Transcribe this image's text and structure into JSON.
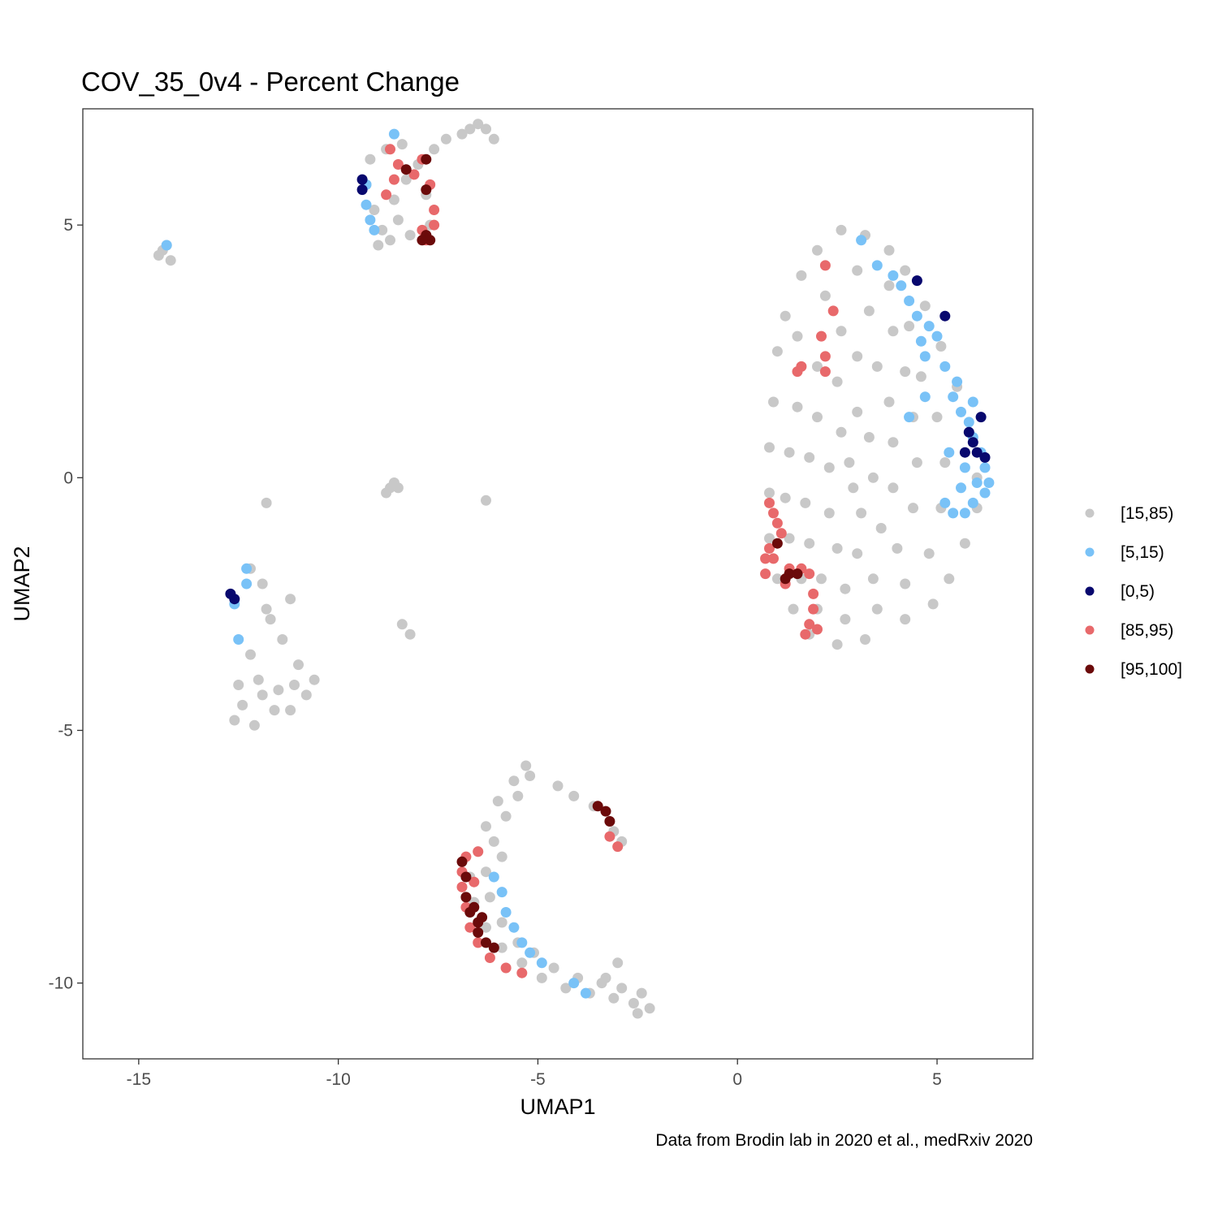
{
  "chart_data": {
    "type": "scatter",
    "title": "COV_35_0v4 - Percent Change",
    "xlabel": "UMAP1",
    "ylabel": "UMAP2",
    "caption": "Data from Brodin lab in 2020 et al., medRxiv 2020",
    "xlim": [
      -16.4,
      7.4
    ],
    "ylim": [
      -11.5,
      7.3
    ],
    "x_ticks": [
      -15,
      -10,
      -5,
      0,
      5
    ],
    "x_tick_labels": [
      "-15",
      "-10",
      "-5",
      "0",
      "5"
    ],
    "y_ticks": [
      -10,
      -5,
      0,
      5
    ],
    "y_tick_labels": [
      "-10",
      "-5",
      "0",
      "5"
    ],
    "grid": false,
    "legend_position": "right",
    "series": [
      {
        "name": "[15,85)",
        "color": "#C8C8C8",
        "points": [
          [
            -14.4,
            4.5
          ],
          [
            -14.2,
            4.3
          ],
          [
            -14.5,
            4.4
          ],
          [
            -14.3,
            4.6
          ],
          [
            -9.2,
            6.3
          ],
          [
            -8.8,
            6.5
          ],
          [
            -8.4,
            6.6
          ],
          [
            -8.0,
            6.2
          ],
          [
            -7.8,
            5.6
          ],
          [
            -7.7,
            5.0
          ],
          [
            -9.3,
            5.8
          ],
          [
            -9.1,
            5.3
          ],
          [
            -8.9,
            4.9
          ],
          [
            -8.6,
            5.5
          ],
          [
            -8.3,
            5.9
          ],
          [
            -8.5,
            5.1
          ],
          [
            -9.0,
            4.6
          ],
          [
            -8.7,
            4.7
          ],
          [
            -8.2,
            4.8
          ],
          [
            -7.6,
            6.5
          ],
          [
            -7.3,
            6.7
          ],
          [
            -6.9,
            6.8
          ],
          [
            -6.5,
            7.0
          ],
          [
            -6.3,
            6.9
          ],
          [
            -6.1,
            6.7
          ],
          [
            -6.7,
            6.9
          ],
          [
            -8.7,
            -0.2
          ],
          [
            -8.8,
            -0.3
          ],
          [
            -8.5,
            -0.2
          ],
          [
            -8.6,
            -0.1
          ],
          [
            -11.8,
            -0.5
          ],
          [
            -6.3,
            -0.45
          ],
          [
            -8.4,
            -2.9
          ],
          [
            -8.2,
            -3.1
          ],
          [
            -12.2,
            -1.8
          ],
          [
            -11.9,
            -2.1
          ],
          [
            -11.8,
            -2.6
          ],
          [
            -12.2,
            -3.5
          ],
          [
            -12.0,
            -4.0
          ],
          [
            -12.4,
            -4.5
          ],
          [
            -12.6,
            -4.8
          ],
          [
            -12.1,
            -4.9
          ],
          [
            -11.6,
            -4.6
          ],
          [
            -11.2,
            -4.6
          ],
          [
            -10.8,
            -4.3
          ],
          [
            -10.6,
            -4.0
          ],
          [
            -11.0,
            -3.7
          ],
          [
            -11.4,
            -3.2
          ],
          [
            -11.2,
            -2.4
          ],
          [
            -11.7,
            -2.8
          ],
          [
            -12.5,
            -4.1
          ],
          [
            -11.9,
            -4.3
          ],
          [
            -11.5,
            -4.2
          ],
          [
            -11.1,
            -4.1
          ],
          [
            1.0,
            2.5
          ],
          [
            1.2,
            3.2
          ],
          [
            1.6,
            4.0
          ],
          [
            2.0,
            4.5
          ],
          [
            2.6,
            4.9
          ],
          [
            3.2,
            4.8
          ],
          [
            3.8,
            4.5
          ],
          [
            4.2,
            4.1
          ],
          [
            4.7,
            3.4
          ],
          [
            5.1,
            2.6
          ],
          [
            5.5,
            1.8
          ],
          [
            5.8,
            0.9
          ],
          [
            6.0,
            0.0
          ],
          [
            6.0,
            -0.6
          ],
          [
            5.7,
            -1.3
          ],
          [
            5.3,
            -2.0
          ],
          [
            4.9,
            -2.5
          ],
          [
            4.2,
            -2.8
          ],
          [
            3.2,
            -3.2
          ],
          [
            2.5,
            -3.3
          ],
          [
            1.8,
            -3.1
          ],
          [
            1.4,
            -2.6
          ],
          [
            1.0,
            -2.0
          ],
          [
            0.8,
            -1.2
          ],
          [
            0.8,
            -0.3
          ],
          [
            0.8,
            0.6
          ],
          [
            0.9,
            1.5
          ],
          [
            1.5,
            2.8
          ],
          [
            2.2,
            3.6
          ],
          [
            3.0,
            4.1
          ],
          [
            3.8,
            3.8
          ],
          [
            4.3,
            3.0
          ],
          [
            4.6,
            2.0
          ],
          [
            5.0,
            1.2
          ],
          [
            5.2,
            0.3
          ],
          [
            5.1,
            -0.6
          ],
          [
            4.8,
            -1.5
          ],
          [
            4.2,
            -2.1
          ],
          [
            3.5,
            -2.6
          ],
          [
            2.7,
            -2.8
          ],
          [
            2.0,
            -2.6
          ],
          [
            1.6,
            -2.0
          ],
          [
            1.3,
            -1.2
          ],
          [
            1.2,
            -0.4
          ],
          [
            1.3,
            0.5
          ],
          [
            1.5,
            1.4
          ],
          [
            2.0,
            2.2
          ],
          [
            2.6,
            2.9
          ],
          [
            3.3,
            3.3
          ],
          [
            3.9,
            2.9
          ],
          [
            4.2,
            2.1
          ],
          [
            4.4,
            1.2
          ],
          [
            4.5,
            0.3
          ],
          [
            4.4,
            -0.6
          ],
          [
            4.0,
            -1.4
          ],
          [
            3.4,
            -2.0
          ],
          [
            2.7,
            -2.2
          ],
          [
            2.1,
            -2.0
          ],
          [
            1.8,
            -1.3
          ],
          [
            1.7,
            -0.5
          ],
          [
            1.8,
            0.4
          ],
          [
            2.0,
            1.2
          ],
          [
            2.5,
            1.9
          ],
          [
            3.0,
            2.4
          ],
          [
            3.5,
            2.2
          ],
          [
            3.8,
            1.5
          ],
          [
            3.9,
            0.7
          ],
          [
            3.9,
            -0.2
          ],
          [
            3.6,
            -1.0
          ],
          [
            3.0,
            -1.5
          ],
          [
            2.5,
            -1.4
          ],
          [
            2.3,
            -0.7
          ],
          [
            2.3,
            0.2
          ],
          [
            2.6,
            0.9
          ],
          [
            3.0,
            1.3
          ],
          [
            3.3,
            0.8
          ],
          [
            3.4,
            0.0
          ],
          [
            3.1,
            -0.7
          ],
          [
            2.8,
            0.3
          ],
          [
            2.9,
            -0.2
          ],
          [
            -5.3,
            -5.7
          ],
          [
            -5.6,
            -6.0
          ],
          [
            -6.0,
            -6.4
          ],
          [
            -6.3,
            -6.9
          ],
          [
            -6.5,
            -7.4
          ],
          [
            -6.7,
            -7.9
          ],
          [
            -6.6,
            -8.4
          ],
          [
            -6.3,
            -8.9
          ],
          [
            -5.9,
            -9.3
          ],
          [
            -5.4,
            -9.6
          ],
          [
            -4.9,
            -9.9
          ],
          [
            -4.3,
            -10.1
          ],
          [
            -3.7,
            -10.2
          ],
          [
            -3.1,
            -10.3
          ],
          [
            -2.6,
            -10.4
          ],
          [
            -2.2,
            -10.5
          ],
          [
            -2.4,
            -10.2
          ],
          [
            -2.9,
            -10.1
          ],
          [
            -3.3,
            -9.9
          ],
          [
            -4.5,
            -6.1
          ],
          [
            -4.1,
            -6.3
          ],
          [
            -3.6,
            -6.5
          ],
          [
            -3.1,
            -7.0
          ],
          [
            -2.9,
            -7.2
          ],
          [
            -5.8,
            -6.7
          ],
          [
            -6.1,
            -7.2
          ],
          [
            -6.3,
            -7.8
          ],
          [
            -6.2,
            -8.3
          ],
          [
            -5.9,
            -8.8
          ],
          [
            -5.5,
            -9.2
          ],
          [
            -5.1,
            -9.4
          ],
          [
            -4.6,
            -9.7
          ],
          [
            -4.0,
            -9.9
          ],
          [
            -3.4,
            -10.0
          ],
          [
            -5.5,
            -6.3
          ],
          [
            -5.9,
            -7.5
          ],
          [
            -2.5,
            -10.6
          ],
          [
            -3.0,
            -9.6
          ],
          [
            -5.2,
            -5.9
          ]
        ]
      },
      {
        "name": "[5,15)",
        "color": "#79C2F7",
        "points": [
          [
            -14.3,
            4.6
          ],
          [
            -9.3,
            5.8
          ],
          [
            -9.3,
            5.4
          ],
          [
            -9.2,
            5.1
          ],
          [
            -9.1,
            4.9
          ],
          [
            -8.6,
            6.8
          ],
          [
            -12.3,
            -1.8
          ],
          [
            -12.3,
            -2.1
          ],
          [
            -12.6,
            -2.5
          ],
          [
            -12.5,
            -3.2
          ],
          [
            3.1,
            4.7
          ],
          [
            3.5,
            4.2
          ],
          [
            3.9,
            4.0
          ],
          [
            4.1,
            3.8
          ],
          [
            4.3,
            3.5
          ],
          [
            4.5,
            3.2
          ],
          [
            4.8,
            3.0
          ],
          [
            5.0,
            2.8
          ],
          [
            4.6,
            2.7
          ],
          [
            4.7,
            2.4
          ],
          [
            5.2,
            2.2
          ],
          [
            5.5,
            1.9
          ],
          [
            5.4,
            1.6
          ],
          [
            5.6,
            1.3
          ],
          [
            5.8,
            1.1
          ],
          [
            5.9,
            0.8
          ],
          [
            6.1,
            0.5
          ],
          [
            6.2,
            0.2
          ],
          [
            6.3,
            -0.1
          ],
          [
            6.2,
            -0.3
          ],
          [
            5.9,
            -0.5
          ],
          [
            5.7,
            -0.7
          ],
          [
            5.4,
            -0.7
          ],
          [
            5.2,
            -0.5
          ],
          [
            5.3,
            0.5
          ],
          [
            4.7,
            1.6
          ],
          [
            4.3,
            1.2
          ],
          [
            5.6,
            -0.2
          ],
          [
            6.0,
            -0.1
          ],
          [
            5.7,
            0.2
          ],
          [
            5.9,
            1.5
          ],
          [
            -6.1,
            -7.9
          ],
          [
            -5.9,
            -8.2
          ],
          [
            -5.8,
            -8.6
          ],
          [
            -5.6,
            -8.9
          ],
          [
            -5.4,
            -9.2
          ],
          [
            -5.2,
            -9.4
          ],
          [
            -4.9,
            -9.6
          ],
          [
            -4.1,
            -10.0
          ],
          [
            -3.8,
            -10.2
          ]
        ]
      },
      {
        "name": "[0,5)",
        "color": "#08086E",
        "points": [
          [
            -9.4,
            5.9
          ],
          [
            -9.4,
            5.7
          ],
          [
            -12.7,
            -2.3
          ],
          [
            -12.6,
            -2.4
          ],
          [
            4.5,
            3.9
          ],
          [
            5.2,
            3.2
          ],
          [
            5.8,
            0.9
          ],
          [
            6.1,
            1.2
          ],
          [
            6.0,
            0.5
          ],
          [
            6.2,
            0.4
          ],
          [
            5.7,
            0.5
          ],
          [
            5.9,
            0.7
          ]
        ]
      },
      {
        "name": "[85,95)",
        "color": "#E8696B",
        "points": [
          [
            -8.7,
            6.5
          ],
          [
            -8.5,
            6.2
          ],
          [
            -8.1,
            6.0
          ],
          [
            -7.9,
            6.3
          ],
          [
            -7.7,
            5.8
          ],
          [
            -8.6,
            5.9
          ],
          [
            -8.8,
            5.6
          ],
          [
            -7.6,
            5.3
          ],
          [
            -7.6,
            5.0
          ],
          [
            -7.9,
            4.9
          ],
          [
            -7.8,
            4.7
          ],
          [
            2.2,
            4.2
          ],
          [
            2.4,
            3.3
          ],
          [
            2.1,
            2.8
          ],
          [
            2.2,
            2.4
          ],
          [
            1.6,
            2.2
          ],
          [
            1.5,
            2.1
          ],
          [
            2.2,
            2.1
          ],
          [
            0.8,
            -0.5
          ],
          [
            0.9,
            -0.7
          ],
          [
            1.0,
            -0.9
          ],
          [
            1.1,
            -1.1
          ],
          [
            0.8,
            -1.4
          ],
          [
            0.9,
            -1.6
          ],
          [
            0.7,
            -1.6
          ],
          [
            0.7,
            -1.9
          ],
          [
            1.3,
            -1.8
          ],
          [
            1.6,
            -1.8
          ],
          [
            1.8,
            -1.9
          ],
          [
            1.2,
            -2.1
          ],
          [
            1.9,
            -2.3
          ],
          [
            1.9,
            -2.6
          ],
          [
            1.8,
            -2.9
          ],
          [
            2.0,
            -3.0
          ],
          [
            1.7,
            -3.1
          ],
          [
            -6.8,
            -7.5
          ],
          [
            -6.9,
            -7.8
          ],
          [
            -6.9,
            -8.1
          ],
          [
            -6.8,
            -8.5
          ],
          [
            -6.7,
            -8.9
          ],
          [
            -6.5,
            -9.2
          ],
          [
            -6.2,
            -9.5
          ],
          [
            -5.8,
            -9.7
          ],
          [
            -5.4,
            -9.8
          ],
          [
            -6.5,
            -7.4
          ],
          [
            -6.6,
            -8.0
          ],
          [
            -3.0,
            -7.3
          ],
          [
            -3.2,
            -7.1
          ]
        ]
      },
      {
        "name": "[95,100]",
        "color": "#6B0A0A",
        "points": [
          [
            -8.3,
            6.1
          ],
          [
            -7.8,
            6.3
          ],
          [
            -7.8,
            5.7
          ],
          [
            -7.7,
            4.7
          ],
          [
            -7.8,
            4.8
          ],
          [
            -7.9,
            4.7
          ],
          [
            1.0,
            -1.3
          ],
          [
            1.3,
            -1.9
          ],
          [
            1.5,
            -1.9
          ],
          [
            1.2,
            -2.0
          ],
          [
            -6.9,
            -7.6
          ],
          [
            -6.8,
            -7.9
          ],
          [
            -6.8,
            -8.3
          ],
          [
            -6.7,
            -8.6
          ],
          [
            -6.5,
            -8.8
          ],
          [
            -6.5,
            -9.0
          ],
          [
            -6.3,
            -9.2
          ],
          [
            -6.1,
            -9.3
          ],
          [
            -6.6,
            -8.5
          ],
          [
            -6.4,
            -8.7
          ],
          [
            -3.5,
            -6.5
          ],
          [
            -3.3,
            -6.6
          ],
          [
            -3.2,
            -6.8
          ]
        ]
      }
    ]
  }
}
